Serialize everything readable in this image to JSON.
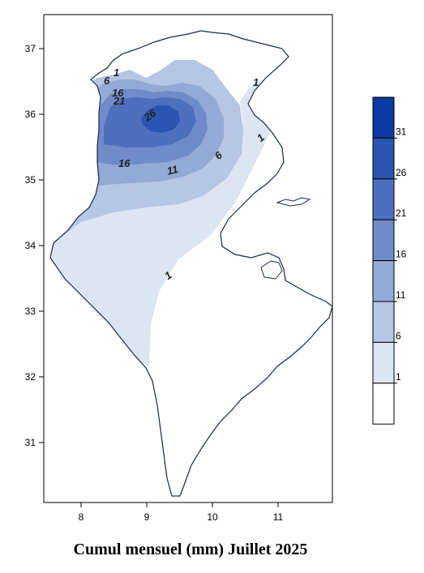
{
  "title": "Cumul mensuel (mm) Juillet 2025",
  "axes": {
    "x_ticks": [
      "8",
      "9",
      "10",
      "11"
    ],
    "y_ticks": [
      "37",
      "36",
      "35",
      "34",
      "33",
      "32",
      "31"
    ]
  },
  "legend": {
    "levels": [
      "31",
      "26",
      "21",
      "16",
      "11",
      "6",
      "1"
    ],
    "colors": [
      "#0b3aa0",
      "#2c55b2",
      "#4d6fbe",
      "#6f8bc9",
      "#93a9d6",
      "#b6c6e5",
      "#dde5f3",
      "#ffffff"
    ]
  },
  "contour_labels": [
    "1",
    "6",
    "16",
    "21",
    "26",
    "16",
    "11",
    "6",
    "1",
    "1",
    "1",
    "11"
  ],
  "colors": {
    "coast": "#1a2a4a",
    "frame": "#000000"
  }
}
